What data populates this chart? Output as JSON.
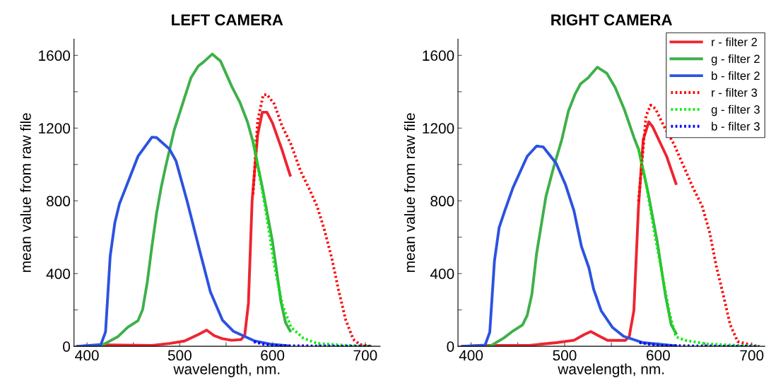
{
  "chart_data": [
    {
      "type": "line",
      "title": "LEFT CAMERA",
      "xlabel": "wavelength, nm.",
      "ylabel": "mean value from raw file",
      "xlim": [
        386,
        716
      ],
      "ylim": [
        0,
        1690
      ],
      "xticks": [
        400,
        {
          "value": 450,
          "label": null
        },
        500,
        {
          "value": 550,
          "label": null
        },
        600,
        {
          "value": 650,
          "label": null
        },
        700
      ],
      "yticks": [
        0,
        {
          "value": 200,
          "label": null
        },
        400,
        {
          "value": 600,
          "label": null
        },
        800,
        {
          "value": 1000,
          "label": null
        },
        1200,
        {
          "value": 1400,
          "label": null
        },
        1600
      ],
      "grid": false,
      "legend": false,
      "marker": "none",
      "series": [
        {
          "color": "#ee2430",
          "line_style": "solid",
          "x": [
            390,
            422,
            470,
            489,
            505,
            520,
            529,
            537,
            546,
            556,
            566,
            570,
            574,
            578,
            584,
            589,
            594,
            600,
            610,
            619
          ],
          "values": [
            0,
            8,
            5,
            16,
            29,
            65,
            89,
            59,
            42,
            33,
            37,
            59,
            235,
            800,
            1163,
            1287,
            1287,
            1228,
            1084,
            941
          ]
        },
        {
          "color": "#3eb04a",
          "line_style": "solid",
          "x": [
            390,
            414,
            433,
            444,
            455,
            460,
            465,
            470,
            475,
            480,
            485,
            494,
            505,
            512,
            520,
            526,
            535,
            544,
            556,
            565,
            573,
            579,
            589,
            600,
            609,
            614,
            619
          ],
          "values": [
            0,
            0,
            52,
            105,
            141,
            203,
            353,
            549,
            732,
            875,
            993,
            1189,
            1365,
            1476,
            1541,
            1565,
            1607,
            1568,
            1430,
            1340,
            1234,
            1124,
            875,
            575,
            248,
            131,
            85
          ]
        },
        {
          "color": "#2c52e0",
          "line_style": "solid",
          "x": [
            390,
            415,
            420,
            425,
            430,
            435,
            443,
            455,
            470,
            475,
            489,
            496,
            508,
            521,
            533,
            546,
            558,
            581,
            597,
            617
          ],
          "values": [
            0,
            10,
            80,
            496,
            679,
            784,
            888,
            1045,
            1150,
            1148,
            1084,
            1019,
            797,
            536,
            300,
            144,
            82,
            29,
            13,
            3
          ]
        },
        {
          "color": "#ff0000",
          "line_style": "dotted",
          "x": [
            579,
            584,
            590,
            594,
            602,
            610,
            620,
            630,
            640,
            648,
            656,
            664,
            671,
            679,
            687,
            694,
            707
          ],
          "values": [
            836,
            1241,
            1382,
            1385,
            1332,
            1215,
            1110,
            967,
            862,
            771,
            640,
            483,
            314,
            144,
            39,
            10,
            0
          ]
        },
        {
          "color": "#00ee00",
          "line_style": "dotted",
          "x": [
            580,
            584,
            592,
            602,
            611,
            620,
            633,
            648,
            674,
            707
          ],
          "values": [
            1137,
            993,
            771,
            444,
            222,
            105,
            46,
            16,
            7,
            0
          ]
        },
        {
          "color": "#0000ff",
          "line_style": "dotted",
          "x": [
            580,
            590,
            600,
            620,
            650,
            707
          ],
          "values": [
            25,
            12,
            5,
            3,
            2,
            0
          ]
        }
      ]
    },
    {
      "type": "line",
      "title": "RIGHT CAMERA",
      "xlabel": "wavelength, nm.",
      "ylabel": "mean value from raw file",
      "xlim": [
        386,
        714
      ],
      "ylim": [
        0,
        1690
      ],
      "xticks": [
        400,
        {
          "value": 450,
          "label": null
        },
        500,
        {
          "value": 550,
          "label": null
        },
        600,
        {
          "value": 650,
          "label": null
        },
        700
      ],
      "yticks": [
        0,
        {
          "value": 200,
          "label": null
        },
        400,
        {
          "value": 600,
          "label": null
        },
        800,
        {
          "value": 1000,
          "label": null
        },
        1200,
        {
          "value": 1400,
          "label": null
        },
        1600
      ],
      "grid": false,
      "legend": "top right",
      "marker": "none",
      "series": [
        {
          "name": "r - filter 2",
          "color": "#ee2430",
          "line_style": "solid",
          "x": [
            391,
            420,
            462,
            491,
            510,
            521,
            528,
            536,
            546,
            565,
            569,
            574,
            579,
            584,
            590,
            594,
            609,
            619
          ],
          "values": [
            0,
            5,
            5,
            20,
            33,
            65,
            81,
            59,
            33,
            33,
            52,
            196,
            771,
            1137,
            1234,
            1208,
            1045,
            895
          ]
        },
        {
          "name": "g - filter 2",
          "color": "#3eb04a",
          "line_style": "solid",
          "x": [
            391,
            420,
            435,
            445,
            455,
            460,
            465,
            470,
            475,
            480,
            488,
            497,
            504,
            511,
            517,
            525,
            535,
            545,
            554,
            564,
            574,
            579,
            589,
            599,
            608,
            614,
            619
          ],
          "values": [
            0,
            0,
            46,
            85,
            118,
            170,
            287,
            509,
            666,
            823,
            980,
            1137,
            1293,
            1385,
            1443,
            1476,
            1535,
            1502,
            1424,
            1300,
            1150,
            1084,
            849,
            575,
            274,
            118,
            72
          ]
        },
        {
          "name": "b - filter 2",
          "color": "#2c52e0",
          "line_style": "solid",
          "x": [
            391,
            415,
            420,
            425,
            430,
            436,
            445,
            460,
            470,
            477,
            491,
            501,
            510,
            518,
            526,
            531,
            539,
            551,
            563,
            584,
            619
          ],
          "values": [
            0,
            7,
            78,
            470,
            653,
            745,
            875,
            1045,
            1101,
            1097,
            1006,
            888,
            745,
            549,
            431,
            314,
            196,
            105,
            55,
            20,
            3
          ]
        },
        {
          "name": "r - filter 3",
          "color": "#ff0000",
          "line_style": "dotted",
          "x": [
            579,
            587,
            592,
            597,
            607,
            617,
            627,
            637,
            647,
            655,
            662,
            670,
            677,
            685,
            701,
            708
          ],
          "values": [
            797,
            1267,
            1326,
            1307,
            1202,
            1110,
            993,
            875,
            771,
            627,
            444,
            274,
            118,
            26,
            5,
            0
          ]
        },
        {
          "name": "g - filter 3",
          "color": "#00ee00",
          "line_style": "dotted",
          "x": [
            579,
            587,
            595,
            604,
            612,
            619,
            629,
            652,
            708
          ],
          "values": [
            1090,
            901,
            653,
            405,
            183,
            52,
            33,
            13,
            0
          ]
        },
        {
          "name": "b - filter 3",
          "color": "#0000ff",
          "line_style": "dotted",
          "x": [
            580,
            600,
            640,
            708
          ],
          "values": [
            20,
            5,
            2,
            0
          ]
        }
      ]
    }
  ]
}
